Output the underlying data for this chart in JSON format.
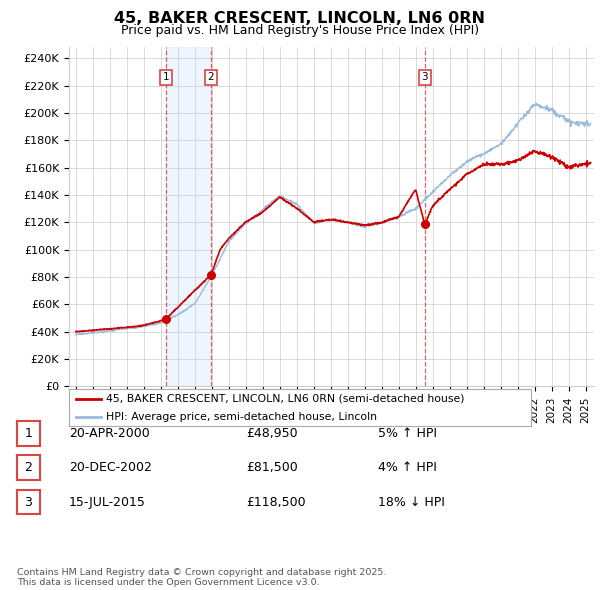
{
  "title": "45, BAKER CRESCENT, LINCOLN, LN6 0RN",
  "subtitle": "Price paid vs. HM Land Registry's House Price Index (HPI)",
  "background_color": "#ffffff",
  "grid_color": "#cccccc",
  "hpi_line_color": "#99bbdd",
  "price_line_color": "#cc0000",
  "vline_color": "#dd4444",
  "vline_shade_color": "#ddeeff",
  "transactions": [
    {
      "id": 1,
      "date_num": 2000.29,
      "price": 48950
    },
    {
      "id": 2,
      "date_num": 2002.96,
      "price": 81500
    },
    {
      "id": 3,
      "date_num": 2015.54,
      "price": 118500
    }
  ],
  "legend_entries": [
    "45, BAKER CRESCENT, LINCOLN, LN6 0RN (semi-detached house)",
    "HPI: Average price, semi-detached house, Lincoln"
  ],
  "footer_text": "Contains HM Land Registry data © Crown copyright and database right 2025.\nThis data is licensed under the Open Government Licence v3.0.",
  "table_rows": [
    {
      "id": 1,
      "date": "20-APR-2000",
      "price": "£48,950",
      "note": "5% ↑ HPI"
    },
    {
      "id": 2,
      "date": "20-DEC-2002",
      "price": "£81,500",
      "note": "4% ↑ HPI"
    },
    {
      "id": 3,
      "date": "15-JUL-2015",
      "price": "£118,500",
      "note": "18% ↓ HPI"
    }
  ],
  "hpi_years": [
    1995,
    1996,
    1997,
    1998,
    1999,
    2000,
    2001,
    2002,
    2003,
    2004,
    2005,
    2006,
    2007,
    2008,
    2009,
    2010,
    2011,
    2012,
    2013,
    2014,
    2015,
    2016,
    2017,
    2018,
    2019,
    2020,
    2021,
    2022,
    2023,
    2024,
    2025
  ],
  "hpi_prices": [
    38000,
    39000,
    40500,
    42000,
    43500,
    46000,
    52000,
    60000,
    80000,
    105000,
    118000,
    128000,
    138000,
    132000,
    118000,
    120000,
    118000,
    115000,
    118000,
    122000,
    128000,
    140000,
    152000,
    162000,
    168000,
    175000,
    190000,
    205000,
    200000,
    192000,
    190000
  ],
  "pp_years": [
    1995,
    1996,
    1997,
    1998,
    1999,
    2000.29,
    2002.96,
    2003.5,
    2004,
    2005,
    2006,
    2007,
    2008,
    2009,
    2010,
    2011,
    2012,
    2013,
    2014,
    2015.0,
    2015.54,
    2016,
    2017,
    2018,
    2019,
    2020,
    2021,
    2022,
    2023,
    2024,
    2025
  ],
  "pp_prices": [
    40000,
    41000,
    42000,
    43000,
    44500,
    48950,
    81500,
    100000,
    108000,
    120000,
    127000,
    138000,
    130000,
    120000,
    122000,
    120000,
    118000,
    120000,
    124000,
    144000,
    118500,
    132000,
    144000,
    155000,
    162000,
    162000,
    165000,
    172000,
    168000,
    160000,
    163000
  ]
}
